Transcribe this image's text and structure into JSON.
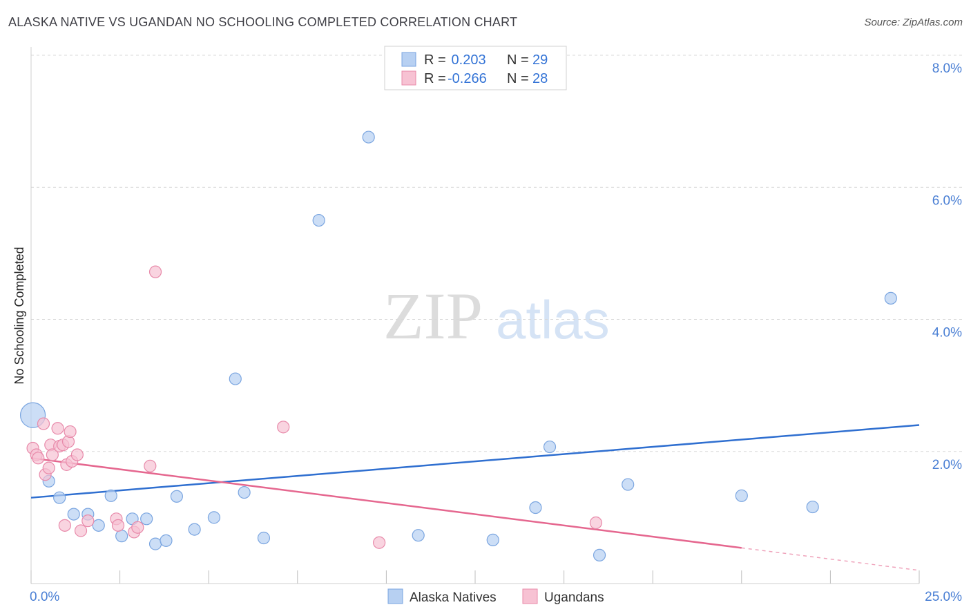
{
  "title": "ALASKA NATIVE VS UGANDAN NO SCHOOLING COMPLETED CORRELATION CHART",
  "source": "Source: ZipAtlas.com",
  "watermark": {
    "zip": "ZIP",
    "atlas": "atlas"
  },
  "colors": {
    "blue_fill": "#b7d0f2",
    "blue_stroke": "#7aa5e0",
    "blue_line": "#2f6fd0",
    "pink_fill": "#f7c2d3",
    "pink_stroke": "#e88aaa",
    "pink_line": "#e5678f",
    "grid": "#d9d9d9",
    "tick_text": "#4a7fd4"
  },
  "chart_data": {
    "type": "scatter",
    "title": "ALASKA NATIVE VS UGANDAN NO SCHOOLING COMPLETED CORRELATION CHART",
    "xlabel": "",
    "ylabel": "No Schooling Completed",
    "xlim": [
      0,
      25
    ],
    "ylim": [
      0,
      8
    ],
    "x_tick_labels": [
      {
        "value": 0,
        "label": "0.0%"
      },
      {
        "value": 25,
        "label": "25.0%"
      }
    ],
    "y_tick_labels": [
      {
        "value": 2,
        "label": "2.0%"
      },
      {
        "value": 4,
        "label": "4.0%"
      },
      {
        "value": 6,
        "label": "6.0%"
      },
      {
        "value": 8,
        "label": "8.0%"
      }
    ],
    "legend": [
      {
        "name": "Alaska Natives",
        "r_label": "R =",
        "r_value": " 0.203",
        "n_label": "N =",
        "n_value": "29"
      },
      {
        "name": "Ugandans",
        "r_label": "R =",
        "r_value": "-0.266",
        "n_label": "N =",
        "n_value": "28"
      }
    ],
    "series": [
      {
        "name": "Alaska Natives",
        "points": [
          [
            0.05,
            2.55
          ],
          [
            0.5,
            1.55
          ],
          [
            0.8,
            1.3
          ],
          [
            1.2,
            1.05
          ],
          [
            1.6,
            1.05
          ],
          [
            1.9,
            0.88
          ],
          [
            2.25,
            1.33
          ],
          [
            2.55,
            0.72
          ],
          [
            2.85,
            0.98
          ],
          [
            3.25,
            0.98
          ],
          [
            3.5,
            0.6
          ],
          [
            3.8,
            0.65
          ],
          [
            4.1,
            1.32
          ],
          [
            4.6,
            0.82
          ],
          [
            5.15,
            1.0
          ],
          [
            5.75,
            3.1
          ],
          [
            6.0,
            1.38
          ],
          [
            6.55,
            0.69
          ],
          [
            8.1,
            5.5
          ],
          [
            9.5,
            6.76
          ],
          [
            10.9,
            0.73
          ],
          [
            13.0,
            0.66
          ],
          [
            14.2,
            1.15
          ],
          [
            14.6,
            2.07
          ],
          [
            16.0,
            0.43
          ],
          [
            16.8,
            1.5
          ],
          [
            20.0,
            1.33
          ],
          [
            22.0,
            1.16
          ],
          [
            24.2,
            4.32
          ]
        ],
        "trend": {
          "x": [
            0,
            25
          ],
          "y": [
            1.3,
            2.4
          ],
          "dashed_from": null
        }
      },
      {
        "name": "Ugandans",
        "points": [
          [
            0.05,
            2.05
          ],
          [
            0.15,
            1.95
          ],
          [
            0.35,
            2.42
          ],
          [
            0.4,
            1.65
          ],
          [
            0.5,
            1.75
          ],
          [
            0.55,
            2.1
          ],
          [
            0.6,
            1.95
          ],
          [
            0.75,
            2.35
          ],
          [
            0.8,
            2.08
          ],
          [
            0.9,
            2.1
          ],
          [
            0.95,
            0.88
          ],
          [
            1.0,
            1.8
          ],
          [
            1.05,
            2.15
          ],
          [
            1.1,
            2.3
          ],
          [
            1.15,
            1.85
          ],
          [
            1.3,
            1.95
          ],
          [
            1.4,
            0.8
          ],
          [
            1.6,
            0.95
          ],
          [
            2.4,
            0.98
          ],
          [
            2.45,
            0.88
          ],
          [
            2.9,
            0.78
          ],
          [
            3.0,
            0.85
          ],
          [
            3.35,
            1.78
          ],
          [
            3.5,
            4.72
          ],
          [
            7.1,
            2.37
          ],
          [
            9.8,
            0.62
          ],
          [
            15.9,
            0.92
          ],
          [
            0.2,
            1.9
          ]
        ],
        "trend": {
          "x": [
            0,
            25
          ],
          "y": [
            1.9,
            0.2
          ],
          "dashed_from": 20
        }
      }
    ]
  }
}
